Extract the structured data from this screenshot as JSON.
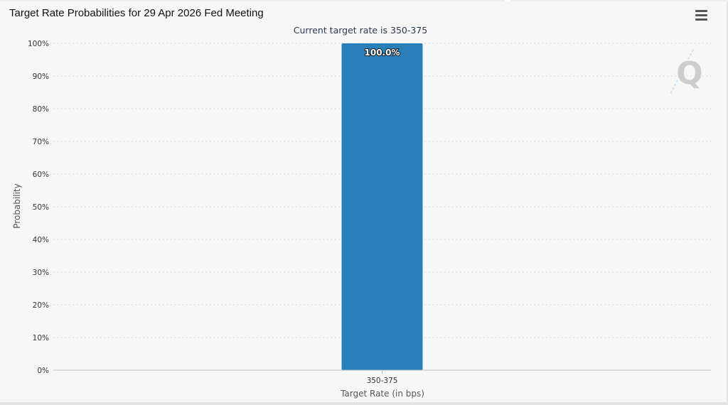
{
  "header": {
    "title": "Target Rate Probabilities for 29 Apr 2026 Fed Meeting",
    "menu_icon": "hamburger-menu-icon"
  },
  "watermark": {
    "letter": "Q",
    "icon": "quikstrike-logo-icon"
  },
  "chart_data": {
    "type": "bar",
    "title": "Target Rate Probabilities for 29 Apr 2026 Fed Meeting",
    "subtitle": "Current target rate is 350-375",
    "categories": [
      "350-375"
    ],
    "values": [
      100.0
    ],
    "data_labels": [
      "100.0%"
    ],
    "xlabel": "Target Rate (in bps)",
    "ylabel": "Probability",
    "ylim": [
      0,
      100
    ],
    "yticks": [
      0,
      10,
      20,
      30,
      40,
      50,
      60,
      70,
      80,
      90,
      100
    ],
    "ytick_labels": [
      "0%",
      "10%",
      "20%",
      "30%",
      "40%",
      "50%",
      "60%",
      "70%",
      "80%",
      "90%",
      "100%"
    ],
    "grid": true,
    "legend": "none",
    "bar_color": "#2980b9"
  }
}
